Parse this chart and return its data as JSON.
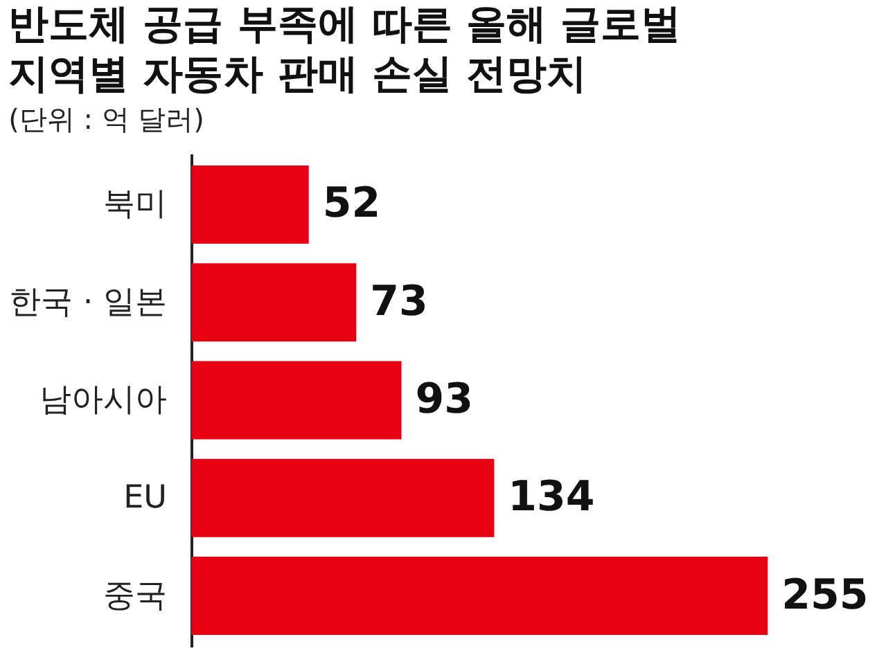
{
  "chart_data": {
    "type": "bar",
    "orientation": "horizontal",
    "title": "반도체 공급 부족에 따른 올해 글로벌 지역별 자동차 판매 손실 전망치",
    "subtitle": "(단위 : 억 달러)",
    "categories": [
      "북미",
      "한국 · 일본",
      "남아시아",
      "EU",
      "중국"
    ],
    "values": [
      52,
      73,
      93,
      134,
      255
    ],
    "color": "#e60012",
    "data_labels": true
  }
}
